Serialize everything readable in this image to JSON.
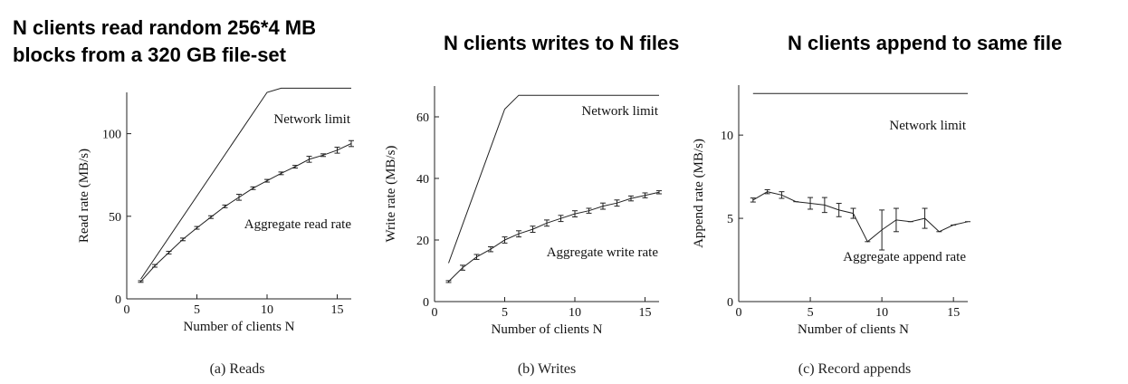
{
  "headings": {
    "a": [
      "N clients read random 256*4 MB",
      "blocks from a 320 GB file-set"
    ],
    "b": "N clients writes to N files",
    "c": "N clients append to same file"
  },
  "chart_data": [
    {
      "type": "line",
      "caption": "(a) Reads",
      "xlabel": "Number of clients N",
      "ylabel": "Read rate (MB/s)",
      "xlim": [
        0,
        16
      ],
      "ylim": [
        0,
        125
      ],
      "xticks": [
        0,
        5,
        10,
        15
      ],
      "yticks": [
        0,
        50,
        100
      ],
      "grid": false,
      "series": [
        {
          "name": "Network limit",
          "errors": false,
          "points": [
            [
              1,
              12
            ],
            [
              10,
              125
            ],
            [
              11,
              127.5
            ],
            [
              16,
              127.5
            ]
          ]
        },
        {
          "name": "Aggregate read rate",
          "errors": true,
          "points": [
            [
              1,
              10.5,
              0.5
            ],
            [
              2,
              20,
              0.8
            ],
            [
              3,
              28,
              0.8
            ],
            [
              4,
              36,
              0.8
            ],
            [
              5,
              43,
              0.8
            ],
            [
              6,
              49.5,
              0.8
            ],
            [
              7,
              56,
              0.8
            ],
            [
              8,
              61.5,
              1.8
            ],
            [
              9,
              67,
              0.8
            ],
            [
              10,
              71.5,
              0.8
            ],
            [
              11,
              76,
              0.8
            ],
            [
              12,
              80,
              0.8
            ],
            [
              13,
              84.5,
              1.8
            ],
            [
              14,
              87,
              0.8
            ],
            [
              15,
              90,
              1.8
            ],
            [
              16,
              94,
              1.8
            ]
          ]
        }
      ]
    },
    {
      "type": "line",
      "caption": "(b) Writes",
      "xlabel": "Number of clients N",
      "ylabel": "Write rate (MB/s)",
      "xlim": [
        0,
        16
      ],
      "ylim": [
        0,
        70
      ],
      "xticks": [
        0,
        5,
        10,
        15
      ],
      "yticks": [
        0,
        20,
        40,
        60
      ],
      "grid": false,
      "series": [
        {
          "name": "Network limit",
          "errors": false,
          "points": [
            [
              1,
              12.5
            ],
            [
              5,
              62.5
            ],
            [
              6,
              67
            ],
            [
              16,
              67
            ]
          ]
        },
        {
          "name": "Aggregate write rate",
          "errors": true,
          "points": [
            [
              1,
              6.5,
              0.3
            ],
            [
              2,
              11,
              0.8
            ],
            [
              3,
              14.5,
              0.8
            ],
            [
              4,
              17,
              0.8
            ],
            [
              5,
              20,
              1
            ],
            [
              6,
              22,
              1
            ],
            [
              7,
              23.5,
              1
            ],
            [
              8,
              25.5,
              1
            ],
            [
              9,
              27,
              1
            ],
            [
              10,
              28.5,
              1
            ],
            [
              11,
              29.5,
              0.8
            ],
            [
              12,
              31,
              1
            ],
            [
              13,
              32,
              1
            ],
            [
              14,
              33.5,
              0.8
            ],
            [
              15,
              34.5,
              0.8
            ],
            [
              16,
              35.5,
              0.5
            ]
          ]
        }
      ]
    },
    {
      "type": "line",
      "caption": "(c) Record appends",
      "xlabel": "Number of clients N",
      "ylabel": "Append rate (MB/s)",
      "xlim": [
        0,
        16
      ],
      "ylim": [
        0,
        13
      ],
      "xticks": [
        0,
        5,
        10,
        15
      ],
      "yticks": [
        0,
        5,
        10
      ],
      "grid": false,
      "series": [
        {
          "name": "Network limit",
          "errors": false,
          "points": [
            [
              1,
              12.5
            ],
            [
              16,
              12.5
            ]
          ]
        },
        {
          "name": "Aggregate append rate",
          "errors": true,
          "points": [
            [
              1,
              6.1,
              0.12
            ],
            [
              2,
              6.6,
              0.12
            ],
            [
              3,
              6.4,
              0.2
            ],
            [
              4,
              6.0,
              0
            ],
            [
              5,
              5.9,
              0.35
            ],
            [
              6,
              5.8,
              0.45
            ],
            [
              7,
              5.5,
              0.4
            ],
            [
              8,
              5.3,
              0.3
            ],
            [
              9,
              3.6,
              0
            ],
            [
              10,
              4.3,
              1.2
            ],
            [
              11,
              4.9,
              0.7
            ],
            [
              12,
              4.8,
              0
            ],
            [
              13,
              5.0,
              0.6
            ],
            [
              14,
              4.2,
              0
            ],
            [
              15,
              4.6,
              0
            ],
            [
              16,
              4.8,
              0
            ]
          ]
        }
      ]
    }
  ]
}
